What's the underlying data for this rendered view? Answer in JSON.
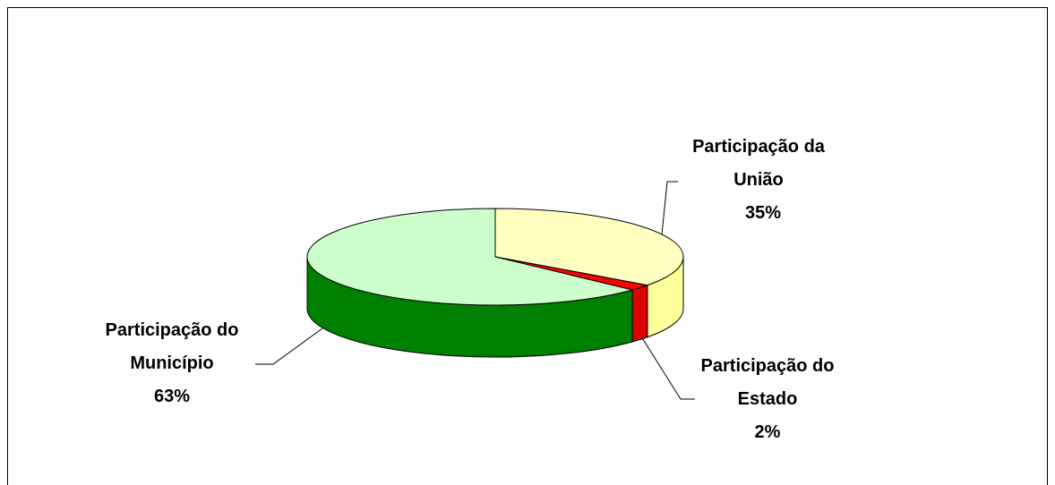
{
  "chart_data": {
    "type": "pie",
    "categories": [
      "Participação da União",
      "Participação do Estado",
      "Participação do Município"
    ],
    "values": [
      35,
      2,
      63
    ],
    "value_labels": [
      "35%",
      "2%",
      "63%"
    ],
    "colors": [
      "#ffffc0",
      "#ff0000",
      "#ccffcc"
    ],
    "side_colors": [
      "#ffff99",
      "#dd0000",
      "#008000"
    ]
  }
}
